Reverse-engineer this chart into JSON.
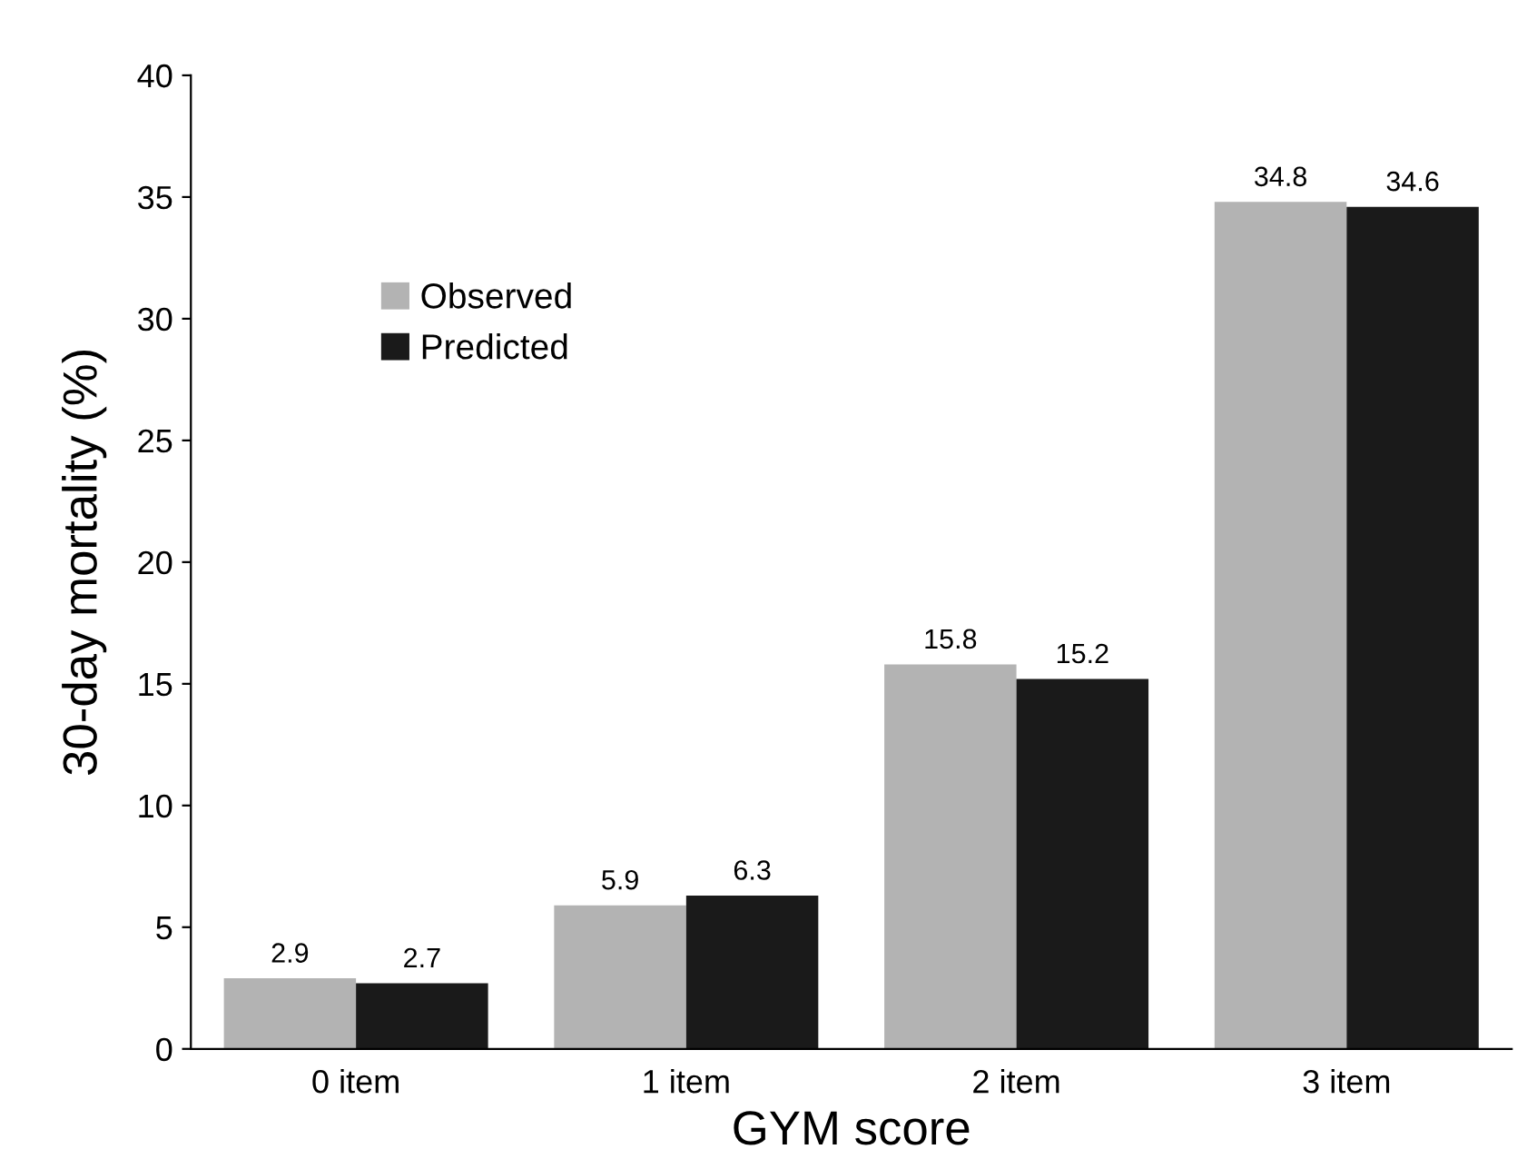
{
  "chart_data": {
    "type": "bar",
    "xlabel": "GYM score",
    "ylabel": "30-day mortality (%)",
    "categories": [
      "0 item",
      "1 item",
      "2 item",
      "3 item"
    ],
    "series": [
      {
        "name": "Observed",
        "color": "#b3b3b3",
        "values": [
          2.9,
          5.9,
          15.8,
          34.8
        ]
      },
      {
        "name": "Predicted",
        "color": "#1a1a1a",
        "values": [
          2.7,
          6.3,
          15.2,
          34.6
        ]
      }
    ],
    "ylim": [
      0,
      40
    ],
    "yticks": [
      0,
      5,
      10,
      15,
      20,
      25,
      30,
      35,
      40
    ],
    "grid": false,
    "legend": "top left",
    "data_labels": true
  }
}
